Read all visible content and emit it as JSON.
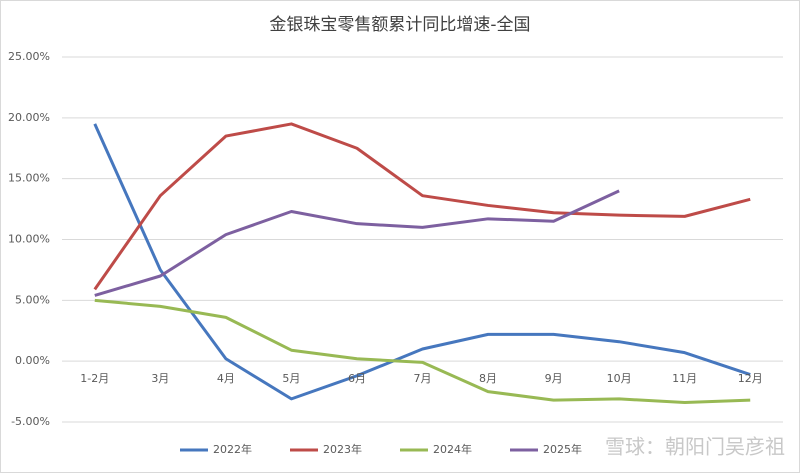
{
  "chart_data": {
    "type": "line",
    "title": "金银珠宝零售额累计同比增速-全国",
    "categories": [
      "1-2月",
      "3月",
      "4月",
      "5月",
      "6月",
      "7月",
      "8月",
      "9月",
      "10月",
      "11月",
      "12月"
    ],
    "series": [
      {
        "name": "2022年",
        "color": "#4677be",
        "values": [
          19.5,
          7.5,
          0.2,
          -3.1,
          -1.2,
          1.0,
          2.2,
          2.2,
          1.6,
          0.7,
          -1.1
        ]
      },
      {
        "name": "2023年",
        "color": "#be4b48",
        "values": [
          5.9,
          13.6,
          18.5,
          19.5,
          17.5,
          13.6,
          12.8,
          12.2,
          12.0,
          11.9,
          13.3
        ]
      },
      {
        "name": "2024年",
        "color": "#98b954",
        "values": [
          5.0,
          4.5,
          3.6,
          0.9,
          0.2,
          -0.1,
          -2.5,
          -3.2,
          -3.1,
          -3.4,
          -3.2
        ]
      },
      {
        "name": "2025年",
        "color": "#7d60a0",
        "values": [
          5.4,
          7.0,
          10.4,
          12.3,
          11.3,
          11.0,
          11.7,
          11.5,
          14.0,
          null,
          null
        ]
      }
    ],
    "ylim": [
      -5,
      25
    ],
    "yticks": [
      {
        "value": -5,
        "label": "-5.00%"
      },
      {
        "value": 0,
        "label": "0.00%"
      },
      {
        "value": 5,
        "label": "5.00%"
      },
      {
        "value": 10,
        "label": "10.00%"
      },
      {
        "value": 15,
        "label": "15.00%"
      },
      {
        "value": 20,
        "label": "20.00%"
      },
      {
        "value": 25,
        "label": "25.00%"
      }
    ],
    "grid": true,
    "legend": "bottom",
    "watermark": "雪球：朝阳门吴彦祖"
  }
}
